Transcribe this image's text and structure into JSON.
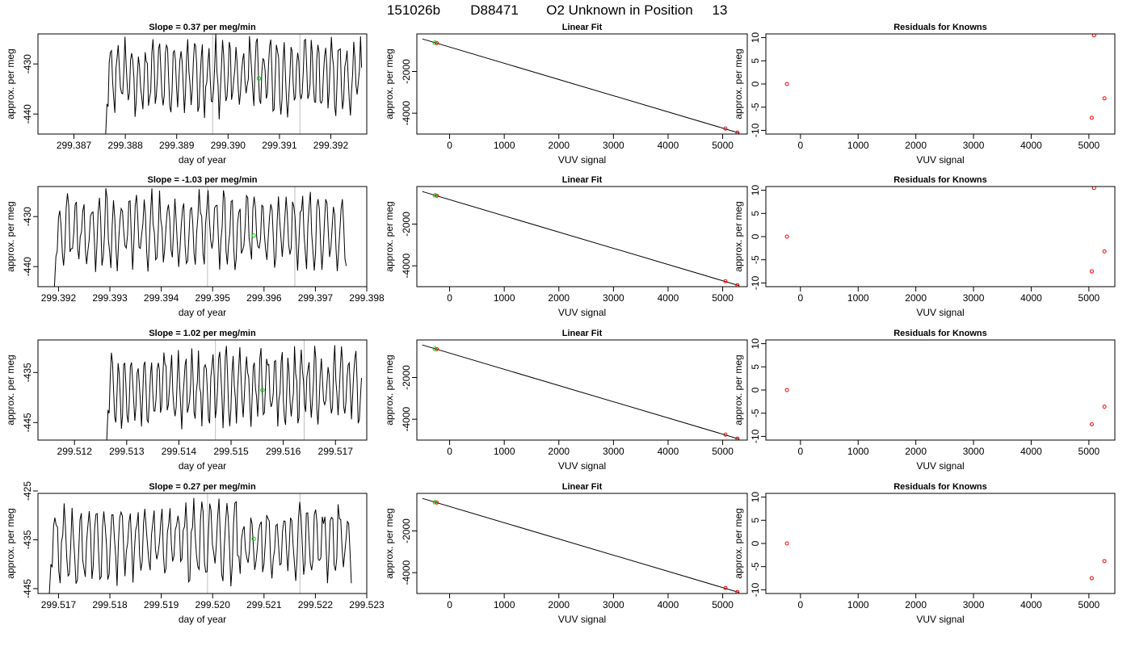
{
  "figure": {
    "title_parts": [
      "151026b",
      "D88471",
      "O2 Unknown in Position",
      "13"
    ]
  },
  "colors": {
    "line": "#000000",
    "reference": "#bebebe",
    "green_marker": "#00cc00",
    "red_marker": "#ff0000",
    "frame": "#000000"
  },
  "chart_data": [
    {
      "type": "line",
      "row": 0,
      "panel": "time",
      "title": "Slope =  0.37  per meg/min",
      "xlabel": "day of year",
      "ylabel": "approx. per meg",
      "xlim": [
        299.3863,
        299.3927
      ],
      "ylim": [
        -444,
        -424
      ],
      "xticks": [
        299.387,
        299.388,
        299.389,
        299.39,
        299.391,
        299.392
      ],
      "xtick_labels": [
        "299.387",
        "299.388",
        "299.389",
        "299.390",
        "299.391",
        "299.392"
      ],
      "yticks": [
        -440,
        -430
      ],
      "ytick_labels": [
        "-440",
        "-430"
      ],
      "vlines": [
        299.3897,
        299.3914
      ],
      "series": {
        "x_start": 299.3876,
        "x_end": 299.3926,
        "mean": -432.5,
        "amp": 6,
        "seed": 11
      },
      "green_point": {
        "x": 299.3906,
        "y": -432.9
      }
    },
    {
      "type": "scatter",
      "row": 0,
      "panel": "fit",
      "title": "Linear Fit",
      "xlabel": "VUV signal",
      "ylabel": "approx. per meg",
      "xlim": [
        -600,
        5450
      ],
      "ylim": [
        -5000,
        -200
      ],
      "xticks": [
        0,
        1000,
        2000,
        3000,
        4000,
        5000
      ],
      "xtick_labels": [
        "0",
        "1000",
        "2000",
        "3000",
        "4000",
        "5000"
      ],
      "yticks": [
        -4000,
        -2000
      ],
      "ytick_labels": [
        "-4000",
        "-2000"
      ],
      "fit_line": {
        "x": [
          -500,
          5300
        ],
        "y": [
          -440,
          -4950
        ]
      },
      "points": [
        {
          "x": -235,
          "y": -640,
          "color": "red"
        },
        {
          "x": 5050,
          "y": -4740,
          "color": "red"
        },
        {
          "x": 5270,
          "y": -4930,
          "color": "red"
        }
      ],
      "green_point": {
        "x": -270,
        "y": -620
      }
    },
    {
      "type": "scatter",
      "row": 0,
      "panel": "residuals",
      "title": "Residuals for Knowns",
      "xlabel": "VUV signal",
      "ylabel": "approx. per meg",
      "xlim": [
        -600,
        5450
      ],
      "ylim": [
        -10.8,
        10.8
      ],
      "xticks": [
        0,
        1000,
        2000,
        3000,
        4000,
        5000
      ],
      "xtick_labels": [
        "0",
        "1000",
        "2000",
        "3000",
        "4000",
        "5000"
      ],
      "yticks": [
        -10,
        -5,
        0,
        5,
        10
      ],
      "ytick_labels": [
        "-10",
        "-5",
        "0",
        "5",
        "10"
      ],
      "points": [
        {
          "x": -235,
          "y": 0,
          "color": "red"
        },
        {
          "x": 5050,
          "y": -7.3,
          "color": "red"
        },
        {
          "x": 5090,
          "y": 10.5,
          "color": "red"
        },
        {
          "x": 5270,
          "y": -3.1,
          "color": "red"
        }
      ]
    },
    {
      "type": "line",
      "row": 1,
      "panel": "time",
      "title": "Slope =  -1.03  per meg/min",
      "xlabel": "day of year",
      "ylabel": "approx. per meg",
      "xlim": [
        299.3916,
        299.398
      ],
      "ylim": [
        -444,
        -424
      ],
      "xticks": [
        299.392,
        299.393,
        299.394,
        299.395,
        299.396,
        299.397,
        299.398
      ],
      "xtick_labels": [
        "299.392",
        "299.393",
        "299.394",
        "299.395",
        "299.396",
        "299.397",
        "299.398"
      ],
      "yticks": [
        -440,
        -430
      ],
      "ytick_labels": [
        "-440",
        "-430"
      ],
      "vlines": [
        299.3949,
        299.3966
      ],
      "series": {
        "x_start": 299.3919,
        "x_end": 299.3976,
        "mean": -432.5,
        "amp": 6,
        "seed": 23
      },
      "green_point": {
        "x": 299.3958,
        "y": -433.8
      }
    },
    {
      "type": "scatter",
      "row": 1,
      "panel": "fit",
      "title": "Linear Fit",
      "xlabel": "VUV signal",
      "ylabel": "approx. per meg",
      "xlim": [
        -600,
        5450
      ],
      "ylim": [
        -5000,
        -200
      ],
      "xticks": [
        0,
        1000,
        2000,
        3000,
        4000,
        5000
      ],
      "xtick_labels": [
        "0",
        "1000",
        "2000",
        "3000",
        "4000",
        "5000"
      ],
      "yticks": [
        -4000,
        -2000
      ],
      "ytick_labels": [
        "-4000",
        "-2000"
      ],
      "fit_line": {
        "x": [
          -500,
          5300
        ],
        "y": [
          -440,
          -4950
        ]
      },
      "points": [
        {
          "x": -235,
          "y": -640,
          "color": "red"
        },
        {
          "x": 5050,
          "y": -4740,
          "color": "red"
        },
        {
          "x": 5270,
          "y": -4930,
          "color": "red"
        }
      ],
      "green_point": {
        "x": -270,
        "y": -620
      }
    },
    {
      "type": "scatter",
      "row": 1,
      "panel": "residuals",
      "title": "Residuals for Knowns",
      "xlabel": "VUV signal",
      "ylabel": "approx. per meg",
      "xlim": [
        -600,
        5450
      ],
      "ylim": [
        -10.8,
        10.8
      ],
      "xticks": [
        0,
        1000,
        2000,
        3000,
        4000,
        5000
      ],
      "xtick_labels": [
        "0",
        "1000",
        "2000",
        "3000",
        "4000",
        "5000"
      ],
      "yticks": [
        -10,
        -5,
        0,
        5,
        10
      ],
      "ytick_labels": [
        "-10",
        "-5",
        "0",
        "5",
        "10"
      ],
      "points": [
        {
          "x": -235,
          "y": 0,
          "color": "red"
        },
        {
          "x": 5050,
          "y": -7.5,
          "color": "red"
        },
        {
          "x": 5090,
          "y": 10.5,
          "color": "red"
        },
        {
          "x": 5270,
          "y": -3.2,
          "color": "red"
        }
      ]
    },
    {
      "type": "line",
      "row": 2,
      "panel": "time",
      "title": "Slope =  1.02  per meg/min",
      "xlabel": "day of year",
      "ylabel": "approx. per meg",
      "xlim": [
        299.5113,
        299.5176
      ],
      "ylim": [
        -448.5,
        -428.5
      ],
      "xticks": [
        299.512,
        299.513,
        299.514,
        299.515,
        299.516,
        299.517
      ],
      "xtick_labels": [
        "299.512",
        "299.513",
        "299.514",
        "299.515",
        "299.516",
        "299.517"
      ],
      "yticks": [
        -445,
        -435
      ],
      "ytick_labels": [
        "-445",
        "-435"
      ],
      "vlines": [
        299.5147,
        299.5164
      ],
      "series": {
        "x_start": 299.5126,
        "x_end": 299.5175,
        "mean": -438,
        "amp": 6,
        "seed": 37
      },
      "green_point": {
        "x": 299.5156,
        "y": -438.5
      }
    },
    {
      "type": "scatter",
      "row": 2,
      "panel": "fit",
      "title": "Linear Fit",
      "xlabel": "VUV signal",
      "ylabel": "approx. per meg",
      "xlim": [
        -600,
        5450
      ],
      "ylim": [
        -5000,
        -200
      ],
      "xticks": [
        0,
        1000,
        2000,
        3000,
        4000,
        5000
      ],
      "xtick_labels": [
        "0",
        "1000",
        "2000",
        "3000",
        "4000",
        "5000"
      ],
      "yticks": [
        -4000,
        -2000
      ],
      "ytick_labels": [
        "-4000",
        "-2000"
      ],
      "fit_line": {
        "x": [
          -500,
          5300
        ],
        "y": [
          -440,
          -4950
        ]
      },
      "points": [
        {
          "x": -235,
          "y": -640,
          "color": "red"
        },
        {
          "x": 5050,
          "y": -4740,
          "color": "red"
        },
        {
          "x": 5270,
          "y": -4930,
          "color": "red"
        }
      ],
      "green_point": {
        "x": -270,
        "y": -620
      }
    },
    {
      "type": "scatter",
      "row": 2,
      "panel": "residuals",
      "title": "Residuals for Knowns",
      "xlabel": "VUV signal",
      "ylabel": "approx. per meg",
      "xlim": [
        -600,
        5450
      ],
      "ylim": [
        -10.8,
        10.8
      ],
      "xticks": [
        0,
        1000,
        2000,
        3000,
        4000,
        5000
      ],
      "xtick_labels": [
        "0",
        "1000",
        "2000",
        "3000",
        "4000",
        "5000"
      ],
      "yticks": [
        -10,
        -5,
        0,
        5,
        10
      ],
      "ytick_labels": [
        "-10",
        "-5",
        "0",
        "5",
        "10"
      ],
      "points": [
        {
          "x": -235,
          "y": 0,
          "color": "red"
        },
        {
          "x": 5050,
          "y": -7.4,
          "color": "red"
        },
        {
          "x": 5270,
          "y": -3.6,
          "color": "red"
        }
      ]
    },
    {
      "type": "line",
      "row": 3,
      "panel": "time",
      "title": "Slope =  0.27  per meg/min",
      "xlabel": "day of year",
      "ylabel": "approx. per meg",
      "xlim": [
        299.5166,
        299.523
      ],
      "ylim": [
        -446,
        -425.5
      ],
      "xticks": [
        299.517,
        299.518,
        299.519,
        299.52,
        299.521,
        299.522,
        299.523
      ],
      "xtick_labels": [
        "299.517",
        "299.518",
        "299.519",
        "299.520",
        "299.521",
        "299.522",
        "299.523"
      ],
      "yticks": [
        -445,
        -435,
        -425
      ],
      "ytick_labels": [
        "-445",
        "-435",
        "-425"
      ],
      "vlines": [
        299.5199,
        299.5217
      ],
      "series": {
        "x_start": 299.5168,
        "x_end": 299.5227,
        "mean": -435.5,
        "amp": 6.5,
        "seed": 53
      },
      "green_point": {
        "x": 299.5208,
        "y": -434.8
      }
    },
    {
      "type": "scatter",
      "row": 3,
      "panel": "fit",
      "title": "Linear Fit",
      "xlabel": "VUV signal",
      "ylabel": "approx. per meg",
      "xlim": [
        -600,
        5450
      ],
      "ylim": [
        -5000,
        -200
      ],
      "xticks": [
        0,
        1000,
        2000,
        3000,
        4000,
        5000
      ],
      "xtick_labels": [
        "0",
        "1000",
        "2000",
        "3000",
        "4000",
        "5000"
      ],
      "yticks": [
        -4000,
        -2000
      ],
      "ytick_labels": [
        "-4000",
        "-2000"
      ],
      "fit_line": {
        "x": [
          -500,
          5300
        ],
        "y": [
          -440,
          -4950
        ]
      },
      "points": [
        {
          "x": -235,
          "y": -640,
          "color": "red"
        },
        {
          "x": 5050,
          "y": -4740,
          "color": "red"
        },
        {
          "x": 5270,
          "y": -4930,
          "color": "red"
        }
      ],
      "green_point": {
        "x": -270,
        "y": -620
      }
    },
    {
      "type": "scatter",
      "row": 3,
      "panel": "residuals",
      "title": "Residuals for Knowns",
      "xlabel": "VUV signal",
      "ylabel": "approx. per meg",
      "xlim": [
        -600,
        5450
      ],
      "ylim": [
        -10.8,
        10.8
      ],
      "xticks": [
        0,
        1000,
        2000,
        3000,
        4000,
        5000
      ],
      "xtick_labels": [
        "0",
        "1000",
        "2000",
        "3000",
        "4000",
        "5000"
      ],
      "yticks": [
        -10,
        -5,
        0,
        5,
        10
      ],
      "ytick_labels": [
        "-10",
        "-5",
        "0",
        "5",
        "10"
      ],
      "points": [
        {
          "x": -235,
          "y": 0,
          "color": "red"
        },
        {
          "x": 5050,
          "y": -7.5,
          "color": "red"
        },
        {
          "x": 5270,
          "y": -3.8,
          "color": "red"
        }
      ]
    }
  ]
}
